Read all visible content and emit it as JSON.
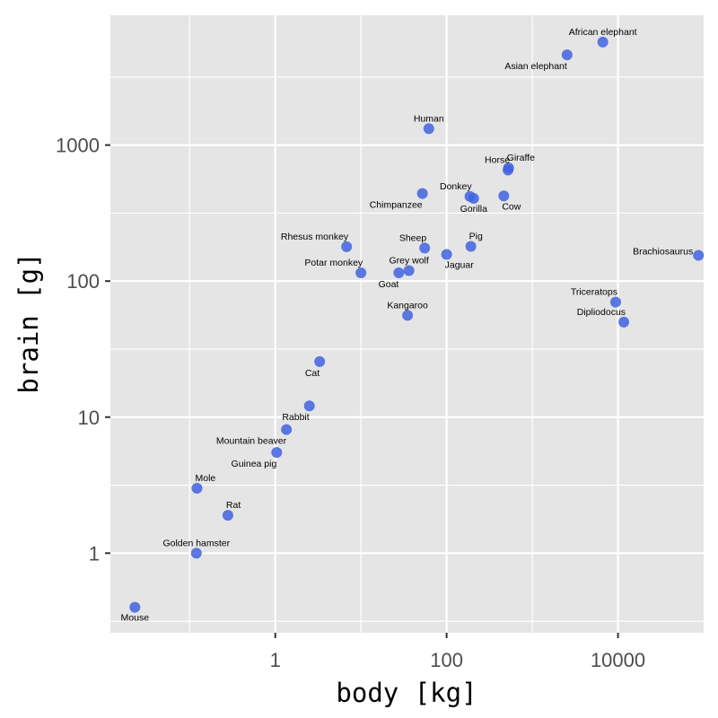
{
  "chart_data": {
    "type": "scatter",
    "xlabel": "body [kg]",
    "ylabel": "brain [g]",
    "x_scale": "log10",
    "y_scale": "log10",
    "xlim": [
      0.0119,
      100000
    ],
    "ylim": [
      0.26,
      9000
    ],
    "x_ticks": [
      {
        "value": 1,
        "label": "1"
      },
      {
        "value": 100,
        "label": "100"
      },
      {
        "value": 10000,
        "label": "10000"
      }
    ],
    "y_ticks": [
      {
        "value": 1,
        "label": "1"
      },
      {
        "value": 10,
        "label": "10"
      },
      {
        "value": 100,
        "label": "100"
      },
      {
        "value": 1000,
        "label": "1000"
      }
    ],
    "grid": true,
    "point_color": "#4163e1",
    "panel_color": "#e5e5e5",
    "grid_color": "#ffffff",
    "points": [
      {
        "name": "Mouse",
        "x": 0.023,
        "y": 0.4,
        "label_pos": "below"
      },
      {
        "name": "Golden hamster",
        "x": 0.12,
        "y": 1.0,
        "label_pos": "above"
      },
      {
        "name": "Mole",
        "x": 0.122,
        "y": 3.0,
        "label_pos": "above-right"
      },
      {
        "name": "Rat",
        "x": 0.28,
        "y": 1.9,
        "label_pos": "above-right"
      },
      {
        "name": "Guinea pig",
        "x": 1.04,
        "y": 5.5,
        "label_pos": "below-left"
      },
      {
        "name": "Mountain beaver",
        "x": 1.35,
        "y": 8.1,
        "label_pos": "below-left"
      },
      {
        "name": "Rabbit",
        "x": 2.5,
        "y": 12.1,
        "label_pos": "below-left"
      },
      {
        "name": "Cat",
        "x": 3.3,
        "y": 25.6,
        "label_pos": "below-left"
      },
      {
        "name": "Kangaroo",
        "x": 35,
        "y": 56,
        "label_pos": "above"
      },
      {
        "name": "Potar monkey",
        "x": 10,
        "y": 115,
        "label_pos": "above-left"
      },
      {
        "name": "Rhesus monkey",
        "x": 6.8,
        "y": 179,
        "label_pos": "above-left"
      },
      {
        "name": "Goat",
        "x": 27.66,
        "y": 115,
        "label_pos": "below-left"
      },
      {
        "name": "Grey wolf",
        "x": 36.33,
        "y": 119.5,
        "label_pos": "above"
      },
      {
        "name": "Sheep",
        "x": 55.5,
        "y": 175,
        "label_pos": "above-left"
      },
      {
        "name": "Jaguar",
        "x": 100,
        "y": 157,
        "label_pos": "below-right"
      },
      {
        "name": "Chimpanzee",
        "x": 52.16,
        "y": 440,
        "label_pos": "below-left"
      },
      {
        "name": "Human",
        "x": 62,
        "y": 1320,
        "label_pos": "above"
      },
      {
        "name": "Pig",
        "x": 192,
        "y": 180,
        "label_pos": "above-right"
      },
      {
        "name": "Donkey",
        "x": 187.1,
        "y": 419,
        "label_pos": "above-left"
      },
      {
        "name": "Gorilla",
        "x": 207,
        "y": 406,
        "label_pos": "below"
      },
      {
        "name": "Cow",
        "x": 465,
        "y": 423,
        "label_pos": "below-right"
      },
      {
        "name": "Horse",
        "x": 521,
        "y": 655,
        "label_pos": "above-left"
      },
      {
        "name": "Giraffe",
        "x": 529,
        "y": 680,
        "label_pos": "above-right"
      },
      {
        "name": "Asian elephant",
        "x": 2547,
        "y": 4603,
        "label_pos": "below-left"
      },
      {
        "name": "African elephant",
        "x": 6654,
        "y": 5712,
        "label_pos": "above"
      },
      {
        "name": "Triceratops",
        "x": 9400,
        "y": 70,
        "label_pos": "above-left"
      },
      {
        "name": "Dipliodocus",
        "x": 11700,
        "y": 50,
        "label_pos": "above-left"
      },
      {
        "name": "Brachiosaurus",
        "x": 87000,
        "y": 154.5,
        "label_pos": "left"
      }
    ]
  }
}
